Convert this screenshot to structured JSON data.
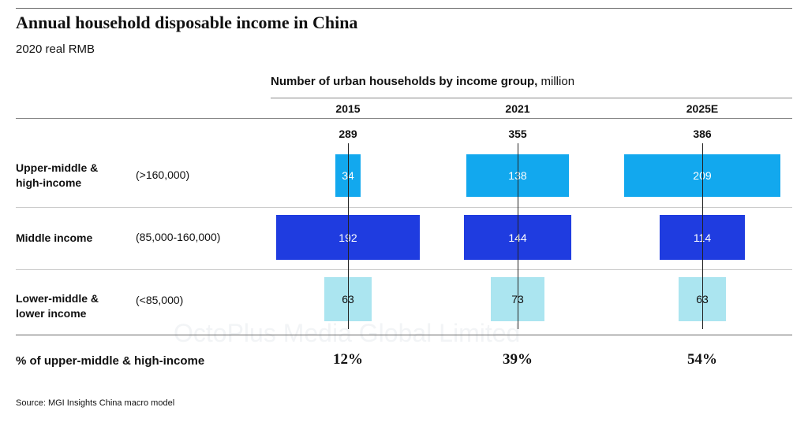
{
  "chart_data": {
    "type": "bar",
    "title": "Annual household disposable income in China",
    "subtitle": "2020 real RMB",
    "header": {
      "bold": "Number of urban households by income group,",
      "unit": " million"
    },
    "categories": [
      "2015",
      "2021",
      "2025E"
    ],
    "totals": [
      "289",
      "355",
      "386"
    ],
    "series": [
      {
        "name": "Upper-middle & high-income",
        "name_lines": [
          "Upper-middle &",
          "high-income"
        ],
        "range": "(>160,000)",
        "values": [
          34,
          138,
          209
        ],
        "color": "#12a8ee",
        "text_color": "#ffffff"
      },
      {
        "name": "Middle income",
        "name_lines": [
          "Middle income"
        ],
        "range": "(85,000-160,000)",
        "values": [
          192,
          144,
          114
        ],
        "color": "#1f3ce0",
        "text_color": "#ffffff"
      },
      {
        "name": "Lower-middle & lower income",
        "name_lines": [
          "Lower-middle &",
          "lower income"
        ],
        "range": "(<85,000)",
        "values": [
          63,
          73,
          63
        ],
        "color": "#abe5f0",
        "text_color": "#111111"
      }
    ],
    "share_label": "% of upper-middle & high-income",
    "share_values": [
      "12%",
      "39%",
      "54%"
    ],
    "source": "Source: MGI Insights China macro model",
    "watermark": "OctoPlus Media Global Limited"
  }
}
